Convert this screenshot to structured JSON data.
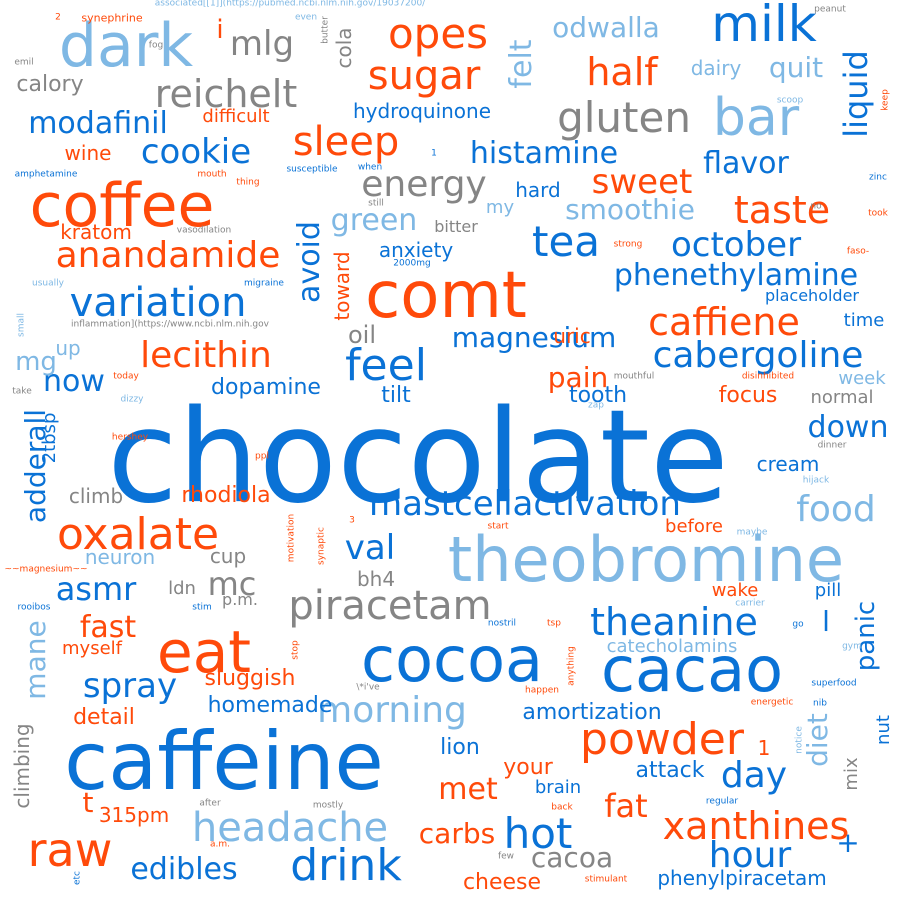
{
  "colors": {
    "blue": "#0a72d6",
    "orange": "#ff4a0a",
    "light_blue": "#7fb8e4",
    "gray": "#858585",
    "background": "#ffffff"
  },
  "words": [
    {
      "text": "chocolate"
    },
    {
      "text": "caffeine"
    },
    {
      "text": "theobromine"
    },
    {
      "text": "cocoa"
    },
    {
      "text": "cacao"
    },
    {
      "text": "comt"
    },
    {
      "text": "coffee"
    },
    {
      "text": "dark"
    },
    {
      "text": "milk"
    },
    {
      "text": "eat"
    },
    {
      "text": "bar"
    },
    {
      "text": "raw"
    },
    {
      "text": "powder"
    },
    {
      "text": "drink"
    },
    {
      "text": "headache"
    },
    {
      "text": "hot"
    },
    {
      "text": "food"
    },
    {
      "text": "feel"
    },
    {
      "text": "piracetam"
    },
    {
      "text": "tea"
    },
    {
      "text": "oxalate"
    },
    {
      "text": "xanthines"
    },
    {
      "text": "gluten"
    },
    {
      "text": "sugar"
    },
    {
      "text": "sleep"
    },
    {
      "text": "opes"
    },
    {
      "text": "half"
    },
    {
      "text": "variation"
    },
    {
      "text": "caffiene"
    },
    {
      "text": "cabergoline"
    },
    {
      "text": "taste"
    },
    {
      "text": "anandamide"
    },
    {
      "text": "reichelt"
    },
    {
      "text": "october"
    },
    {
      "text": "mastcellactivation"
    },
    {
      "text": "morning"
    },
    {
      "text": "theanine"
    },
    {
      "text": "hour"
    },
    {
      "text": "day"
    },
    {
      "text": "energy"
    },
    {
      "text": "lecithin"
    },
    {
      "text": "sweet"
    },
    {
      "text": "histamine"
    },
    {
      "text": "cookie"
    },
    {
      "text": "mlg"
    },
    {
      "text": "spray"
    },
    {
      "text": "flavor"
    },
    {
      "text": "modafinil"
    },
    {
      "text": "phenethylamine"
    },
    {
      "text": "asmr"
    },
    {
      "text": "edibles"
    },
    {
      "text": "cacoa"
    },
    {
      "text": "green"
    },
    {
      "text": "smoothie"
    },
    {
      "text": "odwalla"
    },
    {
      "text": "quit"
    },
    {
      "text": "val"
    },
    {
      "text": "fast"
    },
    {
      "text": "magnesium"
    },
    {
      "text": "fat"
    },
    {
      "text": "carbs"
    },
    {
      "text": "met"
    },
    {
      "text": "down"
    },
    {
      "text": "now"
    },
    {
      "text": "pain"
    },
    {
      "text": "mc"
    },
    {
      "text": "cheese"
    },
    {
      "text": "phenylpiracetam"
    },
    {
      "text": "sluggish"
    },
    {
      "text": "rhodiola"
    },
    {
      "text": "amortization"
    },
    {
      "text": "homemade"
    },
    {
      "text": "dopamine"
    },
    {
      "text": "detail"
    },
    {
      "text": "attack"
    },
    {
      "text": "focus"
    },
    {
      "text": "tooth"
    },
    {
      "text": "hydroquinone"
    },
    {
      "text": "catecholamins"
    },
    {
      "text": "kratom"
    },
    {
      "text": "wine"
    },
    {
      "text": "difficult"
    },
    {
      "text": "calory"
    },
    {
      "text": "climb"
    },
    {
      "text": "tilt"
    },
    {
      "text": "brain"
    },
    {
      "text": "your"
    },
    {
      "text": "lion"
    },
    {
      "text": "cream"
    },
    {
      "text": "dairy"
    },
    {
      "text": "anxiety"
    },
    {
      "text": "oil"
    },
    {
      "text": "mg"
    },
    {
      "text": "bh4"
    },
    {
      "text": "neuron"
    },
    {
      "text": "up"
    },
    {
      "text": "cup"
    },
    {
      "text": "hard"
    },
    {
      "text": "uric"
    },
    {
      "text": "placeholder"
    },
    {
      "text": "time"
    },
    {
      "text": "week"
    },
    {
      "text": "normal"
    },
    {
      "text": "before"
    },
    {
      "text": "wake"
    },
    {
      "text": "pill"
    },
    {
      "text": "myself"
    },
    {
      "text": "p.m."
    },
    {
      "text": "ldn"
    },
    {
      "text": "315pm"
    },
    {
      "text": "bitter"
    },
    {
      "text": "my"
    },
    {
      "text": "i"
    },
    {
      "text": "l"
    },
    {
      "text": "+"
    },
    {
      "text": "t"
    },
    {
      "text": "mix"
    },
    {
      "text": "felt"
    },
    {
      "text": "liquid"
    },
    {
      "text": "avoid"
    },
    {
      "text": "adderall"
    },
    {
      "text": "mane"
    },
    {
      "text": "diet"
    },
    {
      "text": "panic"
    },
    {
      "text": "climbing"
    },
    {
      "text": "2tbsp"
    },
    {
      "text": "toward"
    },
    {
      "text": "cola"
    },
    {
      "text": "nut"
    },
    {
      "text": "2000mg"
    },
    {
      "text": "strong"
    },
    {
      "text": "oil"
    },
    {
      "text": "mouthful"
    },
    {
      "text": "disinhibited"
    },
    {
      "text": "peanut"
    },
    {
      "text": "scoop"
    },
    {
      "text": "took"
    },
    {
      "text": "faso-"
    },
    {
      "text": "zinc"
    },
    {
      "text": "no"
    },
    {
      "text": "keep"
    },
    {
      "text": "synephrine"
    },
    {
      "text": "associated[[1]](https://pubmed.ncbi.nlm.nih.gov/19037200/"
    },
    {
      "text": "fog"
    },
    {
      "text": "butter"
    },
    {
      "text": "even"
    },
    {
      "text": "emil"
    },
    {
      "text": "still"
    },
    {
      "text": "1"
    },
    {
      "text": "when"
    },
    {
      "text": "amphetamine"
    },
    {
      "text": "mouth"
    },
    {
      "text": "thing"
    },
    {
      "text": "susceptible"
    },
    {
      "text": "vasodilation"
    },
    {
      "text": "migraine"
    },
    {
      "text": "usually"
    },
    {
      "text": "inflammation](https://www.ncbi.nlm.nih.gov"
    },
    {
      "text": "small"
    },
    {
      "text": "take"
    },
    {
      "text": "today"
    },
    {
      "text": "dizzy"
    },
    {
      "text": "hershey"
    },
    {
      "text": "ppl"
    },
    {
      "text": "zap"
    },
    {
      "text": "dinner"
    },
    {
      "text": "hijack"
    },
    {
      "text": "motivation"
    },
    {
      "text": "synaptic"
    },
    {
      "text": "3"
    },
    {
      "text": "start"
    },
    {
      "text": "maybe"
    },
    {
      "text": "carrier"
    },
    {
      "text": "~~magnesium~~"
    },
    {
      "text": "rooibos"
    },
    {
      "text": "stim"
    },
    {
      "text": "nostril"
    },
    {
      "text": "tsp"
    },
    {
      "text": "go"
    },
    {
      "text": "gym"
    },
    {
      "text": "stop"
    },
    {
      "text": "\\*i've"
    },
    {
      "text": "anything"
    },
    {
      "text": "happen"
    },
    {
      "text": "superfood"
    },
    {
      "text": "nib"
    },
    {
      "text": "energetic"
    },
    {
      "text": "notice"
    },
    {
      "text": "mostly"
    },
    {
      "text": "after"
    },
    {
      "text": "back"
    },
    {
      "text": "regular"
    },
    {
      "text": "a.m."
    },
    {
      "text": "etc"
    },
    {
      "text": "few"
    },
    {
      "text": "stimulant"
    },
    {
      "text": "2"
    },
    {
      "text": "1"
    }
  ]
}
